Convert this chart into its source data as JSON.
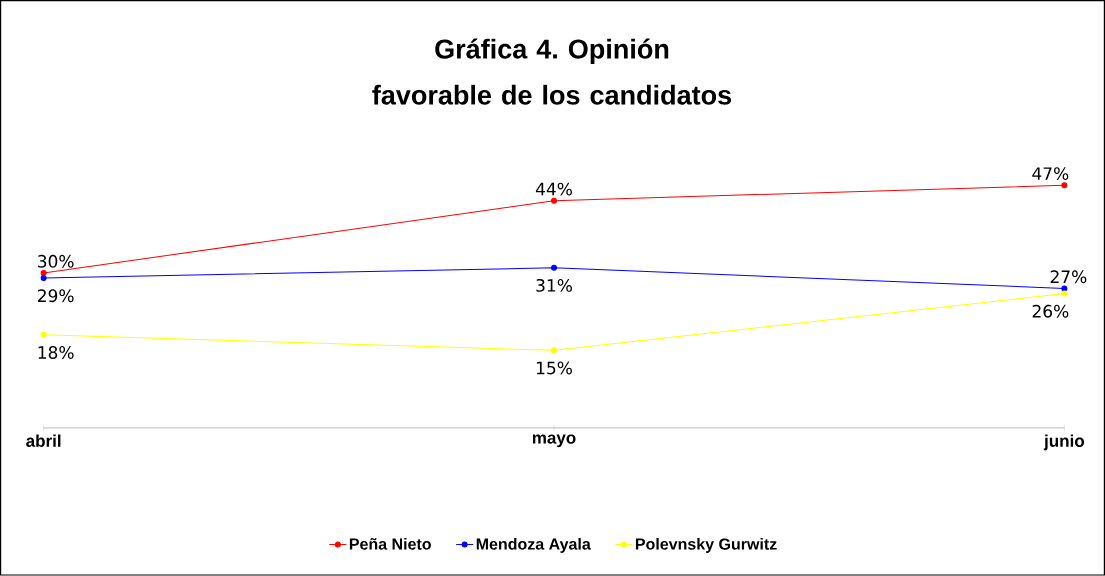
{
  "chart_data": {
    "type": "line",
    "title": "Gráfica 4. Opinión favorable de los candidatos",
    "categories": [
      "abril",
      "mayo",
      "junio"
    ],
    "series": [
      {
        "name": "Peña Nieto",
        "color": "#ff0000",
        "values": [
          30,
          44,
          47
        ],
        "value_labels": [
          "30%",
          "44%",
          "47%"
        ]
      },
      {
        "name": "Mendoza Ayala",
        "color": "#0000ff",
        "values": [
          29,
          31,
          27
        ],
        "value_labels": [
          "29%",
          "31%",
          "27%"
        ]
      },
      {
        "name": "Polevnsky Gurwitz",
        "color": "#ffff00",
        "values": [
          18,
          15,
          26
        ],
        "value_labels": [
          "18%",
          "15%",
          "26%"
        ]
      }
    ],
    "tick_labels": "x",
    "legend": "bottom",
    "marker": "circle"
  }
}
